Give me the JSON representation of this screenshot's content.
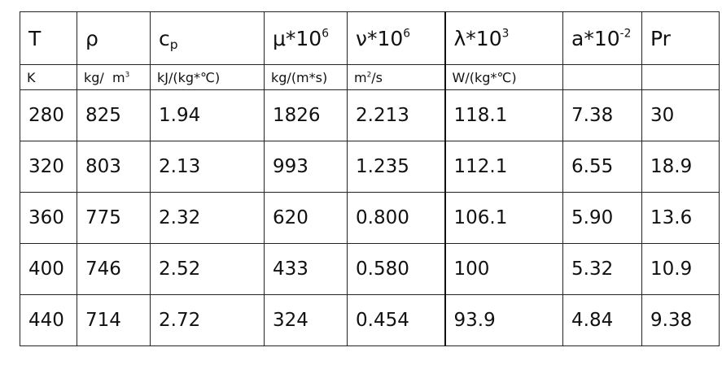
{
  "table": {
    "header": {
      "T": "T",
      "rho": "ρ",
      "cp_base": "c",
      "cp_sub": "p",
      "mu_base": "μ*10",
      "mu_exp": "6",
      "nu_base": "ν*10",
      "nu_exp": "6",
      "lambda_base": "λ*10",
      "lambda_exp": "3",
      "a_base": "a*10",
      "a_exp": "-2",
      "Pr": "Pr"
    },
    "units": {
      "T": "K",
      "rho_a": "kg/  m",
      "rho_exp": "3",
      "cp": "kJ/(kg*℃)",
      "mu": "kg/(m*s)",
      "nu_a": "m",
      "nu_exp": "2",
      "nu_b": "/s",
      "lambda": "W/(kg*℃)",
      "a": "",
      "Pr": ""
    },
    "rows": [
      [
        "280",
        "825",
        "1.94",
        "1826",
        "2.213",
        "118.1",
        "7.38",
        "30"
      ],
      [
        "320",
        "803",
        "2.13",
        "993",
        "1.235",
        "112.1",
        "6.55",
        "18.9"
      ],
      [
        "360",
        "775",
        "2.32",
        "620",
        "0.800",
        "106.1",
        "5.90",
        "13.6"
      ],
      [
        "400",
        "746",
        "2.52",
        "433",
        "0.580",
        "100",
        "5.32",
        "10.9"
      ],
      [
        "440",
        "714",
        "2.72",
        "324",
        "0.454",
        "93.9",
        "4.84",
        "9.38"
      ]
    ]
  }
}
